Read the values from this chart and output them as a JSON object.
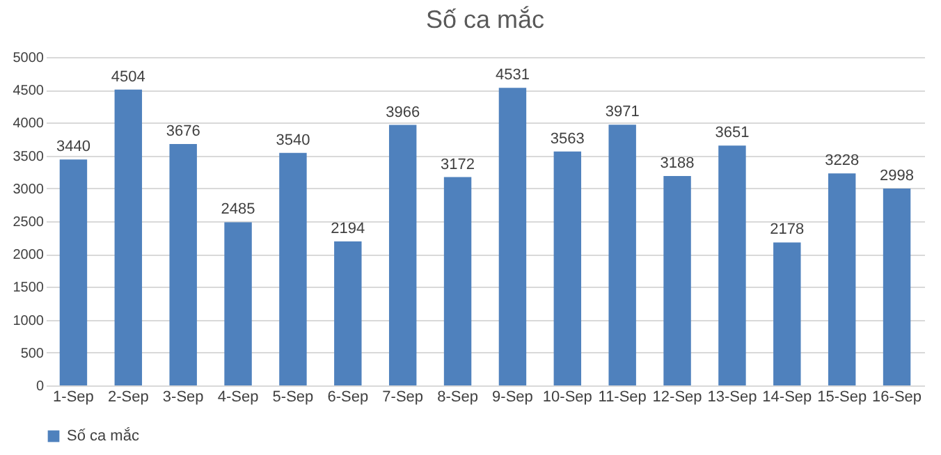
{
  "chart_data": {
    "type": "bar",
    "title": "Số ca mắc",
    "categories": [
      "1-Sep",
      "2-Sep",
      "3-Sep",
      "4-Sep",
      "5-Sep",
      "6-Sep",
      "7-Sep",
      "8-Sep",
      "9-Sep",
      "10-Sep",
      "11-Sep",
      "12-Sep",
      "13-Sep",
      "14-Sep",
      "15-Sep",
      "16-Sep"
    ],
    "series": [
      {
        "name": "Số ca mắc",
        "color": "#4f81bd",
        "values": [
          3440,
          4504,
          3676,
          2485,
          3540,
          2194,
          3966,
          3172,
          4531,
          3563,
          3971,
          3188,
          3651,
          2178,
          3228,
          2998
        ]
      }
    ],
    "ylim": [
      0,
      5000
    ],
    "yticks": [
      0,
      500,
      1000,
      1500,
      2000,
      2500,
      3000,
      3500,
      4000,
      4500,
      5000
    ],
    "grid": "y",
    "legend": "bottom",
    "data_labels": true
  }
}
